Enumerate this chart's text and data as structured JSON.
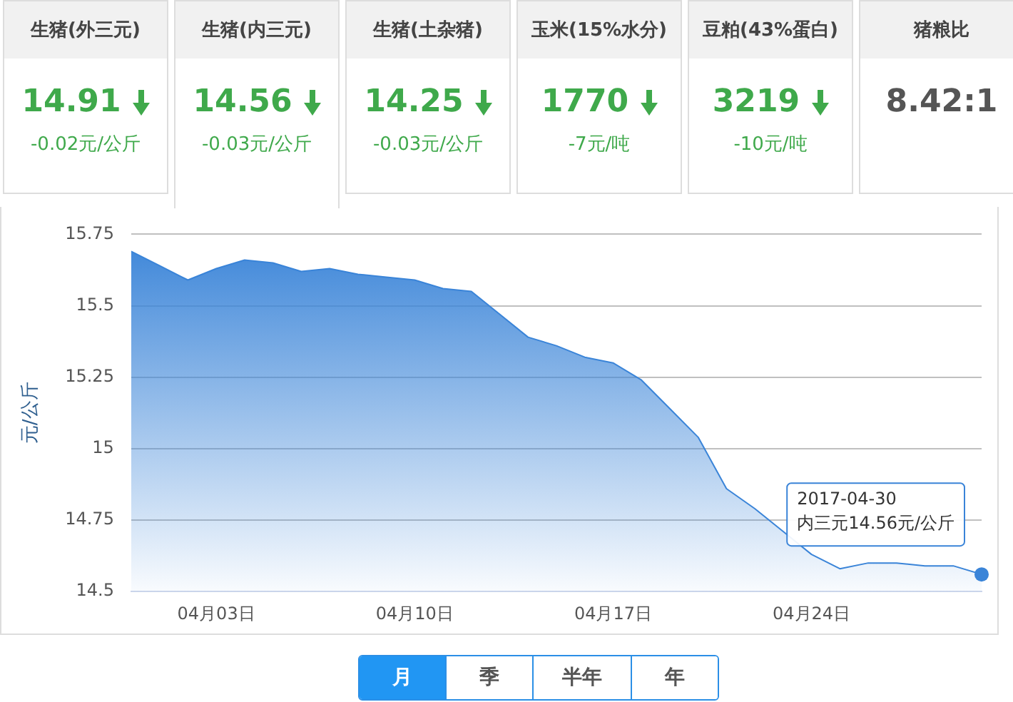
{
  "chart_data": [
    {
      "type": "other",
      "categories": [
        "生猪(外三元)",
        "生猪(内三元)",
        "生猪(土杂猪)",
        "玉米(15%水分)",
        "豆粕(43%蛋白)",
        "猪粮比"
      ],
      "value_labels": [
        "14.91",
        "14.56",
        "14.25",
        "1770",
        "3219",
        "8.42:1"
      ],
      "annotations": [
        "-0.02元/公斤",
        "-0.03元/公斤",
        "-0.03元/公斤",
        "-7元/吨",
        "-10元/吨"
      ]
    },
    {
      "type": "area",
      "ylabel": "元/公斤",
      "x": [
        "2017-03-31",
        "2017-04-01",
        "2017-04-02",
        "2017-04-03",
        "2017-04-04",
        "2017-04-05",
        "2017-04-06",
        "2017-04-07",
        "2017-04-08",
        "2017-04-09",
        "2017-04-10",
        "2017-04-11",
        "2017-04-12",
        "2017-04-13",
        "2017-04-14",
        "2017-04-15",
        "2017-04-16",
        "2017-04-17",
        "2017-04-18",
        "2017-04-19",
        "2017-04-20",
        "2017-04-21",
        "2017-04-22",
        "2017-04-23",
        "2017-04-24",
        "2017-04-25",
        "2017-04-26",
        "2017-04-27",
        "2017-04-28",
        "2017-04-29",
        "2017-04-30"
      ],
      "series": [
        {
          "color": "#3a84d8",
          "values": [
            15.69,
            15.64,
            15.59,
            15.63,
            15.66,
            15.65,
            15.62,
            15.63,
            15.61,
            15.6,
            15.59,
            15.56,
            15.55,
            15.47,
            15.39,
            15.36,
            15.32,
            15.3,
            15.24,
            15.14,
            15.04,
            14.86,
            14.79,
            14.71,
            14.63,
            14.58,
            14.6,
            14.6,
            14.59,
            14.59,
            14.56
          ]
        }
      ],
      "xlim": [
        "2017-03-31",
        "2017-04-30"
      ],
      "xticks": [
        {
          "value": "2017-04-03",
          "label": "04月03日"
        },
        {
          "value": "2017-04-10",
          "label": "04月10日"
        },
        {
          "value": "2017-04-17",
          "label": "04月17日"
        },
        {
          "value": "2017-04-24",
          "label": "04月24日"
        }
      ],
      "ylim": [
        14.5,
        15.75
      ],
      "yticks": [
        14.5,
        14.75,
        15,
        15.25,
        15.5,
        15.75
      ],
      "grid": "y",
      "legend": false,
      "marker": "none",
      "annotations": [
        {
          "text": "2017-04-30\n内三元14.56元/公斤",
          "x": "2017-04-30",
          "y": 14.56
        },
        "月",
        "季",
        "半年",
        "年"
      ]
    }
  ]
}
